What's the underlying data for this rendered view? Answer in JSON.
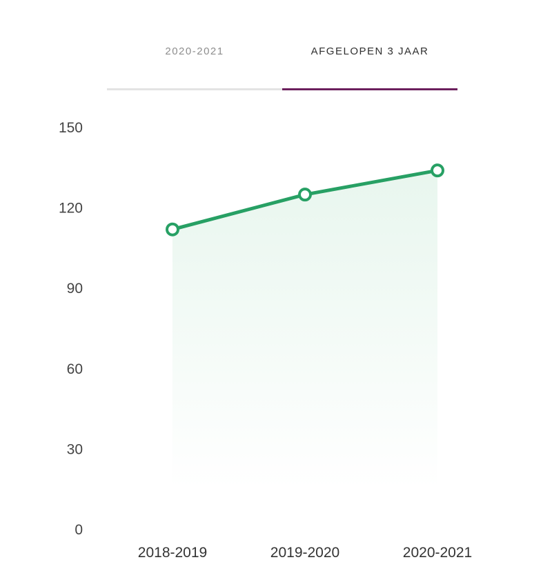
{
  "tabs": [
    {
      "label": "2020-2021",
      "active": false
    },
    {
      "label": "AFGELOPEN 3 JAAR",
      "active": true
    }
  ],
  "colors": {
    "line": "#27a064",
    "fill": "#e8f6ee",
    "active_tab": "#6b1f5c",
    "inactive_tab": "#e3e3e3"
  },
  "chart_data": {
    "type": "area",
    "categories": [
      "2018-2019",
      "2019-2020",
      "2020-2021"
    ],
    "values": [
      112,
      125,
      134
    ],
    "yticks": [
      0,
      30,
      60,
      90,
      120,
      150
    ],
    "ylim": [
      0,
      150
    ],
    "grid": false,
    "legend": "none"
  }
}
